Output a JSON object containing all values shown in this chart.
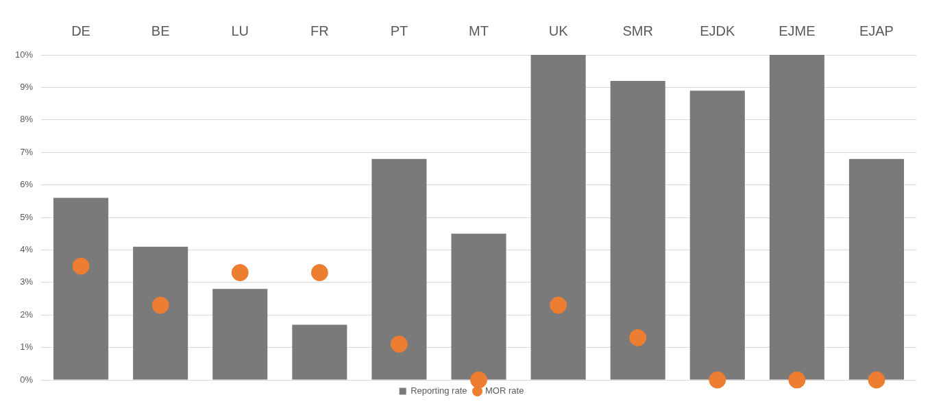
{
  "chart_data": {
    "type": "bar",
    "categories": [
      "DE",
      "BE",
      "LU",
      "FR",
      "PT",
      "MT",
      "UK",
      "SMR",
      "EJDK",
      "EJME",
      "EJAP"
    ],
    "series": [
      {
        "name": "Reporting rate",
        "color": "#7a7a7a",
        "values": [
          5.6,
          4.1,
          2.8,
          1.7,
          6.8,
          4.5,
          10,
          9.2,
          8.9,
          10,
          6.8
        ]
      },
      {
        "name": "MOR rate",
        "type": "scatter",
        "color": "#ed7d31",
        "values": [
          3.5,
          2.3,
          3.3,
          3.3,
          1.1,
          0,
          2.3,
          1.3,
          0,
          0,
          0
        ]
      }
    ],
    "ylim": [
      0,
      10
    ],
    "yticks": [
      {
        "value": 0,
        "label": "0%"
      },
      {
        "value": 1,
        "label": "1%"
      },
      {
        "value": 2,
        "label": "2%"
      },
      {
        "value": 3,
        "label": "3%"
      },
      {
        "value": 4,
        "label": "4%"
      },
      {
        "value": 5,
        "label": "5%"
      },
      {
        "value": 6,
        "label": "6%"
      },
      {
        "value": 7,
        "label": "7%"
      },
      {
        "value": 8,
        "label": "8%"
      },
      {
        "value": 9,
        "label": "9%"
      },
      {
        "value": 10,
        "label": "10%"
      }
    ],
    "grid": "y",
    "legend": "bottom",
    "marker": "circle"
  }
}
